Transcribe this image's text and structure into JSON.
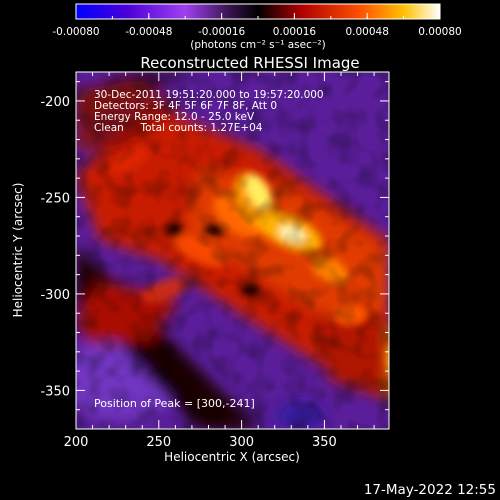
{
  "chart_data": {
    "type": "heatmap",
    "title": "Reconstructed RHESSI Image",
    "xlabel": "Heliocentric X (arcsec)",
    "ylabel": "Heliocentric Y (arcsec)",
    "xlim": [
      200,
      389
    ],
    "ylim": [
      -370,
      -185
    ],
    "x_ticks": [
      200,
      250,
      300,
      350
    ],
    "y_ticks": [
      -200,
      -250,
      -300,
      -350
    ],
    "colorbar": {
      "ticks": [
        "-0.00080",
        "-0.00048",
        "-0.00016",
        "0.00016",
        "0.00048",
        "0.00080"
      ],
      "range": [
        -0.0008,
        0.0008
      ],
      "units_label": "(photons cm⁻² s⁻¹ asec⁻²)"
    },
    "annotations": [
      "30-Dec-2011 19:51:20.000 to 19:57:20.000",
      "Detectors: 3F 4F 5F 6F 7F 8F, Att 0",
      "Energy Range: 12.0 - 25.0 keV",
      "Clean     Total counts: 1.27E+04"
    ],
    "peak_label": "Position of Peak = [300,-241]",
    "peak": [
      300,
      -241
    ],
    "footer_timestamp": "17-May-2022 12:55",
    "colors": {
      "background": "#000000",
      "text": "#ffffff"
    }
  }
}
